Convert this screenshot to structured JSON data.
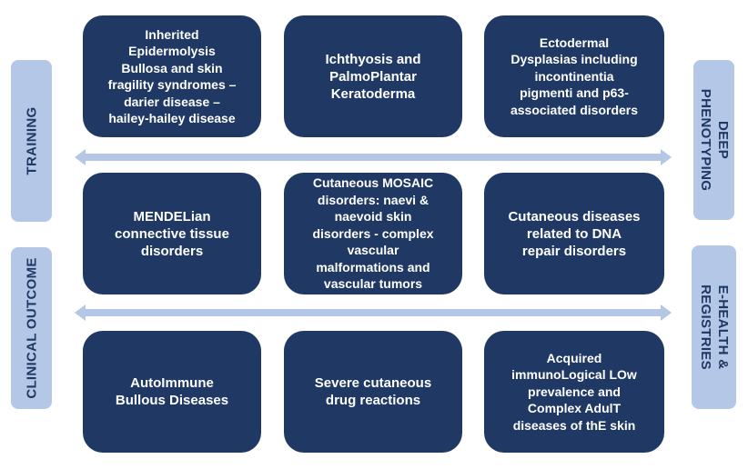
{
  "boxes": {
    "epidermolysis": "Inherited\nEpidermolysis\nBullosa and skin\nfragility syndromes –\ndarier disease –\nhailey-hailey disease",
    "ichthyosis": "Ichthyosis and\nPalmoPlantar\nKeratoderma",
    "ectodermal": "Ectodermal\nDysplasias including\nincontinentia\npigmenti and p63-\nassociated disorders",
    "mendelian": "MENDELian\nconnective tissue\ndisorders",
    "mosaic": "Cutaneous MOSAIC\ndisorders: naevi &\nnaevoid skin\ndisorders - complex\nvascular\nmalformations and\nvascular tumors",
    "dna_repair": "Cutaneous diseases\nrelated to DNA\nrepair disorders",
    "autoimmune": "AutoImmune\nBullous Diseases",
    "drug_reactions": "Severe cutaneous\ndrug reactions",
    "acquired": "Acquired\nimmunoLogical LOw\nprevalence and\nComplex AdulT\ndiseases of thE skin"
  },
  "side_labels": {
    "training": "TRAINING",
    "clinical_outcome": "CLINICAL OUTCOME",
    "deep_phenotyping": "DEEP\nPHENOTYPING",
    "ehealth_registries": "E-HEALTH &\nREGISTRIES"
  },
  "colors": {
    "box_fill": "#1f3864",
    "side_fill": "#b4c7e7",
    "arrow_fill": "#b4c7e7"
  }
}
